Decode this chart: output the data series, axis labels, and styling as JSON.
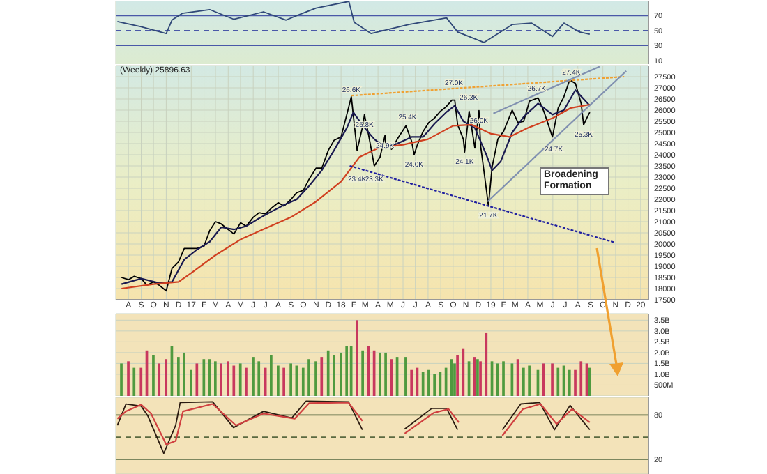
{
  "chart_data": [
    {
      "type": "line",
      "x": [
        "2016-07-05",
        "2016-09-01",
        "2016-11-01",
        "2016-11-15",
        "2016-12-10",
        "2017-02-15",
        "2017-04-15",
        "2017-06-26",
        "2017-08-20",
        "2017-09-15",
        "2017-11-01",
        "2018-01-20",
        "2018-02-02",
        "2018-03-15",
        "2018-06-15",
        "2018-09-15",
        "2018-10-12",
        "2018-12-15",
        "2019-02-22",
        "2019-04-10",
        "2019-05-31",
        "2019-06-28",
        "2019-08-05",
        "2019-08-30"
      ],
      "values": [
        62,
        55,
        46,
        64,
        73,
        78,
        65,
        75,
        64,
        70,
        80,
        89,
        61,
        46,
        58,
        67,
        48,
        34,
        58,
        60,
        42,
        60,
        48,
        45
      ],
      "color": "#304878",
      "xlim": [
        "2016-07-01",
        "2020-01-20"
      ],
      "xticks": [
        {
          "value": "2016-08-01",
          "label": null
        },
        {
          "value": "2016-09-01",
          "label": null
        },
        {
          "value": "2016-10-01",
          "label": null
        },
        {
          "value": "2016-11-01",
          "label": null
        },
        {
          "value": "2016-12-01",
          "label": null
        },
        {
          "value": "2017-01-01",
          "label": null
        },
        {
          "value": "2017-02-01",
          "label": null
        },
        {
          "value": "2017-03-01",
          "label": null
        },
        {
          "value": "2017-04-01",
          "label": null
        },
        {
          "value": "2017-05-01",
          "label": null
        },
        {
          "value": "2017-06-01",
          "label": null
        },
        {
          "value": "2017-07-01",
          "label": null
        },
        {
          "value": "2017-08-01",
          "label": null
        },
        {
          "value": "2017-09-01",
          "label": null
        },
        {
          "value": "2017-10-01",
          "label": null
        },
        {
          "value": "2017-11-01",
          "label": null
        },
        {
          "value": "2017-12-01",
          "label": null
        },
        {
          "value": "2018-01-01",
          "label": null
        },
        {
          "value": "2018-02-01",
          "label": null
        },
        {
          "value": "2018-03-01",
          "label": null
        },
        {
          "value": "2018-04-01",
          "label": null
        },
        {
          "value": "2018-05-01",
          "label": null
        },
        {
          "value": "2018-06-01",
          "label": null
        },
        {
          "value": "2018-07-01",
          "label": null
        },
        {
          "value": "2018-08-01",
          "label": null
        },
        {
          "value": "2018-09-01",
          "label": null
        },
        {
          "value": "2018-10-01",
          "label": null
        },
        {
          "value": "2018-11-01",
          "label": null
        },
        {
          "value": "2018-12-01",
          "label": null
        },
        {
          "value": "2019-01-01",
          "label": null
        },
        {
          "value": "2019-02-01",
          "label": null
        },
        {
          "value": "2019-03-01",
          "label": null
        },
        {
          "value": "2019-04-01",
          "label": null
        },
        {
          "value": "2019-05-01",
          "label": null
        },
        {
          "value": "2019-06-01",
          "label": null
        },
        {
          "value": "2019-07-01",
          "label": null
        },
        {
          "value": "2019-08-01",
          "label": null
        },
        {
          "value": "2019-09-01",
          "label": null
        },
        {
          "value": "2019-10-01",
          "label": null
        },
        {
          "value": "2019-11-01",
          "label": null
        },
        {
          "value": "2019-12-01",
          "label": null
        },
        {
          "value": "2020-01-01",
          "label": null
        }
      ],
      "ylim": [
        5,
        89
      ],
      "yticks": [
        70,
        50,
        30,
        10
      ],
      "grid": "x",
      "tick_labels": "y",
      "ref_lines": [
        {
          "axis": "y",
          "value": 70,
          "color": "#4a58a8",
          "line_style": "solid"
        },
        {
          "axis": "y",
          "value": 50,
          "color": "#4a58a8",
          "line_style": "dashed"
        },
        {
          "axis": "y",
          "value": 30,
          "color": "#4a58a8",
          "line_style": "solid"
        }
      ]
    },
    {
      "type": "line",
      "title": "(Weekly) 25896.63",
      "series": [
        {
          "color": "#000000",
          "x": [
            "2016-07-15",
            "2016-08-01",
            "2016-08-15",
            "2016-09-01",
            "2016-09-15",
            "2016-10-01",
            "2016-10-15",
            "2016-11-01",
            "2016-11-15",
            "2016-12-01",
            "2016-12-15",
            "2017-01-01",
            "2017-01-15",
            "2017-02-01",
            "2017-02-15",
            "2017-03-01",
            "2017-03-15",
            "2017-04-01",
            "2017-04-15",
            "2017-05-01",
            "2017-05-15",
            "2017-06-01",
            "2017-06-15",
            "2017-07-01",
            "2017-07-15",
            "2017-08-01",
            "2017-08-15",
            "2017-09-01",
            "2017-09-15",
            "2017-10-01",
            "2017-10-15",
            "2017-11-01",
            "2017-11-15",
            "2017-12-01",
            "2017-12-15",
            "2018-01-01",
            "2018-01-15",
            "2018-01-26",
            "2018-02-09",
            "2018-02-23",
            "2018-02-27",
            "2018-03-09",
            "2018-03-23",
            "2018-04-06",
            "2018-04-18",
            "2018-04-20",
            "2018-05-04",
            "2018-05-18",
            "2018-06-08",
            "2018-06-22",
            "2018-06-28",
            "2018-07-06",
            "2018-07-20",
            "2018-08-03",
            "2018-08-17",
            "2018-08-31",
            "2018-09-14",
            "2018-09-28",
            "2018-10-05",
            "2018-10-12",
            "2018-10-26",
            "2018-10-29",
            "2018-11-09",
            "2018-11-23",
            "2018-11-30",
            "2018-12-03",
            "2018-12-07",
            "2018-12-21",
            "2018-12-26",
            "2019-01-04",
            "2019-01-18",
            "2019-02-01",
            "2019-02-22",
            "2019-03-08",
            "2019-03-22",
            "2019-04-05",
            "2019-04-26",
            "2019-05-10",
            "2019-05-31",
            "2019-06-14",
            "2019-06-28",
            "2019-07-12",
            "2019-07-26",
            "2019-08-09",
            "2019-08-15",
            "2019-08-23",
            "2019-08-30"
          ],
          "values": [
            18500,
            18400,
            18550,
            18450,
            18150,
            18300,
            18150,
            17900,
            18900,
            19200,
            19800,
            19800,
            19800,
            19900,
            20600,
            21000,
            20900,
            20650,
            20450,
            20950,
            20800,
            21200,
            21400,
            21350,
            21600,
            21850,
            21700,
            22000,
            22300,
            22400,
            22900,
            23400,
            23400,
            24200,
            24650,
            24800,
            25800,
            26600,
            24200,
            25300,
            25800,
            24900,
            23500,
            23900,
            24860,
            24450,
            24250,
            24700,
            25300,
            24600,
            24000,
            24450,
            25050,
            25450,
            25650,
            25950,
            26150,
            26450,
            26450,
            25350,
            24700,
            24120,
            25950,
            24300,
            25500,
            25980,
            24400,
            22450,
            21710,
            23450,
            24700,
            25050,
            26000,
            25450,
            25500,
            26400,
            26550,
            25950,
            24800,
            26100,
            26600,
            27350,
            27200,
            26300,
            25340,
            25650,
            25900
          ]
        },
        {
          "color": "#1a1a50",
          "x": [
            "2016-07-15",
            "2016-09-01",
            "2016-10-15",
            "2016-11-15",
            "2016-12-15",
            "2017-01-15",
            "2017-02-15",
            "2017-03-15",
            "2017-04-15",
            "2017-05-15",
            "2017-06-15",
            "2017-07-15",
            "2017-08-15",
            "2017-09-15",
            "2017-10-15",
            "2017-11-15",
            "2017-12-15",
            "2018-01-15",
            "2018-01-31",
            "2018-02-23",
            "2018-03-23",
            "2018-04-20",
            "2018-05-18",
            "2018-06-22",
            "2018-07-20",
            "2018-08-17",
            "2018-09-14",
            "2018-10-05",
            "2018-10-26",
            "2018-11-23",
            "2018-12-21",
            "2019-01-04",
            "2019-01-25",
            "2019-02-22",
            "2019-03-22",
            "2019-04-26",
            "2019-05-31",
            "2019-06-28",
            "2019-07-26",
            "2019-08-30"
          ],
          "values": [
            18200,
            18450,
            18250,
            18300,
            19300,
            19750,
            20100,
            20750,
            20650,
            20800,
            21150,
            21450,
            21750,
            22000,
            22600,
            23300,
            24200,
            25200,
            25900,
            25300,
            24700,
            24300,
            24500,
            24800,
            24800,
            25400,
            25900,
            26200,
            25500,
            25200,
            24000,
            23300,
            23700,
            25000,
            25700,
            26300,
            25800,
            26000,
            26900,
            26200
          ]
        },
        {
          "color": "#d04020",
          "x": [
            "2016-07-15",
            "2016-10-01",
            "2016-12-01",
            "2017-01-01",
            "2017-03-01",
            "2017-05-01",
            "2017-07-01",
            "2017-09-01",
            "2017-11-01",
            "2018-01-01",
            "2018-02-15",
            "2018-04-01",
            "2018-06-01",
            "2018-08-01",
            "2018-10-01",
            "2018-11-15",
            "2018-12-31",
            "2019-02-15",
            "2019-04-01",
            "2019-06-01",
            "2019-07-15",
            "2019-08-30"
          ],
          "values": [
            18000,
            18200,
            18300,
            18700,
            19500,
            20200,
            20700,
            21200,
            21900,
            22800,
            23900,
            24300,
            24450,
            24700,
            25300,
            25350,
            24950,
            24800,
            25200,
            25650,
            26100,
            26250
          ]
        },
        {
          "color": "#f0a030",
          "line_style": "dotted",
          "x": [
            "2018-01-26",
            "2019-11-22"
          ],
          "values": [
            26650,
            27500
          ]
        },
        {
          "color": "#2020a0",
          "line_style": "dotted",
          "x": [
            "2018-01-22",
            "2019-10-29"
          ],
          "values": [
            23500,
            20070
          ]
        },
        {
          "color": "#8090b0",
          "x": [
            "2018-12-24",
            "2019-11-27"
          ],
          "values": [
            21900,
            27760
          ]
        },
        {
          "color": "#8090b0",
          "x": [
            "2019-01-07",
            "2019-09-23"
          ],
          "values": [
            25850,
            27950
          ]
        }
      ],
      "xlim": [
        "2016-07-01",
        "2020-01-20"
      ],
      "xticks": [
        {
          "value": "2016-08-01",
          "label": "A"
        },
        {
          "value": "2016-09-01",
          "label": "S"
        },
        {
          "value": "2016-10-01",
          "label": "O"
        },
        {
          "value": "2016-11-01",
          "label": "N"
        },
        {
          "value": "2016-12-01",
          "label": "D"
        },
        {
          "value": "2017-01-01",
          "label": "17"
        },
        {
          "value": "2017-02-01",
          "label": "F"
        },
        {
          "value": "2017-03-01",
          "label": "M"
        },
        {
          "value": "2017-04-01",
          "label": "A"
        },
        {
          "value": "2017-05-01",
          "label": "M"
        },
        {
          "value": "2017-06-01",
          "label": "J"
        },
        {
          "value": "2017-07-01",
          "label": "J"
        },
        {
          "value": "2017-08-01",
          "label": "A"
        },
        {
          "value": "2017-09-01",
          "label": "S"
        },
        {
          "value": "2017-10-01",
          "label": "O"
        },
        {
          "value": "2017-11-01",
          "label": "N"
        },
        {
          "value": "2017-12-01",
          "label": "D"
        },
        {
          "value": "2018-01-01",
          "label": "18"
        },
        {
          "value": "2018-02-01",
          "label": "F"
        },
        {
          "value": "2018-03-01",
          "label": "M"
        },
        {
          "value": "2018-04-01",
          "label": "A"
        },
        {
          "value": "2018-05-01",
          "label": "M"
        },
        {
          "value": "2018-06-01",
          "label": "J"
        },
        {
          "value": "2018-07-01",
          "label": "J"
        },
        {
          "value": "2018-08-01",
          "label": "A"
        },
        {
          "value": "2018-09-01",
          "label": "S"
        },
        {
          "value": "2018-10-01",
          "label": "O"
        },
        {
          "value": "2018-11-01",
          "label": "N"
        },
        {
          "value": "2018-12-01",
          "label": "D"
        },
        {
          "value": "2019-01-01",
          "label": "19"
        },
        {
          "value": "2019-02-01",
          "label": "F"
        },
        {
          "value": "2019-03-01",
          "label": "M"
        },
        {
          "value": "2019-04-01",
          "label": "A"
        },
        {
          "value": "2019-05-01",
          "label": "M"
        },
        {
          "value": "2019-06-01",
          "label": "J"
        },
        {
          "value": "2019-07-01",
          "label": "J"
        },
        {
          "value": "2019-08-01",
          "label": "A"
        },
        {
          "value": "2019-09-01",
          "label": "S"
        },
        {
          "value": "2019-10-01",
          "label": "O"
        },
        {
          "value": "2019-11-01",
          "label": "N"
        },
        {
          "value": "2019-12-01",
          "label": "D"
        },
        {
          "value": "2020-01-01",
          "label": "20"
        }
      ],
      "ylim": [
        17500,
        28000
      ],
      "yticks": [
        17500,
        18000,
        18500,
        19000,
        19500,
        20000,
        20500,
        21000,
        21500,
        22000,
        22500,
        23000,
        23500,
        24000,
        24500,
        25000,
        25500,
        26000,
        26500,
        27000,
        27500
      ],
      "grid": true,
      "annotations": [
        "Broadening Formation",
        {
          "text": "26.6K",
          "x": "2018-01-26",
          "y": 26620
        },
        {
          "text": "25.8K",
          "x": "2018-02-27",
          "y": 25800
        },
        {
          "text": "23.4K",
          "x": "2018-02-09",
          "y": 23360
        },
        {
          "text": "23.3K",
          "x": "2018-03-23",
          "y": 23340
        },
        {
          "text": "24.9K",
          "x": "2018-04-18",
          "y": 24860
        },
        {
          "text": "25.4K",
          "x": "2018-06-12",
          "y": 25400
        },
        {
          "text": "24.0K",
          "x": "2018-06-28",
          "y": 24000
        },
        {
          "text": "27.0K",
          "x": "2018-10-03",
          "y": 26950
        },
        {
          "text": "26.3K",
          "x": "2018-11-08",
          "y": 26280
        },
        {
          "text": "26.0K",
          "x": "2018-12-03",
          "y": 25980
        },
        {
          "text": "24.1K",
          "x": "2018-10-29",
          "y": 24120
        },
        {
          "text": "21.7K",
          "x": "2018-12-26",
          "y": 21710
        },
        {
          "text": "26.7K",
          "x": "2019-04-23",
          "y": 26700
        },
        {
          "text": "24.7K",
          "x": "2019-06-03",
          "y": 24680
        },
        {
          "text": "27.4K",
          "x": "2019-07-16",
          "y": 27400
        },
        {
          "text": "25.3K",
          "x": "2019-08-15",
          "y": 25340
        }
      ]
    },
    {
      "type": "bar",
      "x": [
        "2016-07-15",
        "2016-08-01",
        "2016-08-15",
        "2016-09-01",
        "2016-09-15",
        "2016-10-01",
        "2016-10-15",
        "2016-11-01",
        "2016-11-15",
        "2016-12-01",
        "2016-12-15",
        "2017-01-01",
        "2017-01-15",
        "2017-02-01",
        "2017-02-15",
        "2017-03-01",
        "2017-03-15",
        "2017-04-01",
        "2017-04-15",
        "2017-05-01",
        "2017-05-15",
        "2017-06-01",
        "2017-06-15",
        "2017-07-01",
        "2017-07-15",
        "2017-08-01",
        "2017-08-15",
        "2017-09-01",
        "2017-09-15",
        "2017-10-01",
        "2017-10-15",
        "2017-11-01",
        "2017-11-15",
        "2017-12-01",
        "2017-12-15",
        "2018-01-01",
        "2018-01-15",
        "2018-01-26",
        "2018-02-09",
        "2018-02-23",
        "2018-03-09",
        "2018-03-23",
        "2018-04-06",
        "2018-04-20",
        "2018-05-04",
        "2018-05-18",
        "2018-06-08",
        "2018-06-22",
        "2018-07-06",
        "2018-07-20",
        "2018-08-03",
        "2018-08-17",
        "2018-08-31",
        "2018-09-14",
        "2018-09-28",
        "2018-10-05",
        "2018-10-12",
        "2018-10-26",
        "2018-11-09",
        "2018-11-23",
        "2018-11-30",
        "2018-12-07",
        "2018-12-21",
        "2019-01-04",
        "2019-01-18",
        "2019-02-01",
        "2019-02-22",
        "2019-03-08",
        "2019-03-22",
        "2019-04-05",
        "2019-04-26",
        "2019-05-10",
        "2019-05-31",
        "2019-06-14",
        "2019-06-28",
        "2019-07-12",
        "2019-07-26",
        "2019-08-09",
        "2019-08-23",
        "2019-08-30"
      ],
      "values": [
        1500000000.0,
        1600000000.0,
        1300000000.0,
        1300000000.0,
        2100000000.0,
        1900000000.0,
        1500000000.0,
        1700000000.0,
        2300000000.0,
        1800000000.0,
        2000000000.0,
        1200000000.0,
        1500000000.0,
        1700000000.0,
        1700000000.0,
        1600000000.0,
        1500000000.0,
        1600000000.0,
        1400000000.0,
        1500000000.0,
        1300000000.0,
        1800000000.0,
        1600000000.0,
        1300000000.0,
        1900000000.0,
        1400000000.0,
        1300000000.0,
        1500000000.0,
        1400000000.0,
        1300000000.0,
        1700000000.0,
        1600000000.0,
        1800000000.0,
        2100000000.0,
        1900000000.0,
        2000000000.0,
        2300000000.0,
        2300000000.0,
        3500000000.0,
        2100000000.0,
        2300000000.0,
        2100000000.0,
        2000000000.0,
        2000000000.0,
        1700000000.0,
        1800000000.0,
        1800000000.0,
        1200000000.0,
        1300000000.0,
        1100000000.0,
        1200000000.0,
        1000000000.0,
        1100000000.0,
        1300000000.0,
        1700000000.0,
        1500000000.0,
        1900000000.0,
        2200000000.0,
        1600000000.0,
        1800000000.0,
        1700000000.0,
        1600000000.0,
        2900000000.0,
        1600000000.0,
        1500000000.0,
        1600000000.0,
        1500000000.0,
        1700000000.0,
        1300000000.0,
        1400000000.0,
        1200000000.0,
        1500000000.0,
        1500000000.0,
        1300000000.0,
        1400000000.0,
        1200000000.0,
        1200000000.0,
        1600000000.0,
        1500000000.0,
        1300000000.0
      ],
      "colors": [
        "#4f9a3f",
        "#c8385e",
        "#4f9a3f",
        "#c8385e",
        "#c8385e",
        "#4f9a3f",
        "#c8385e",
        "#c8385e",
        "#4f9a3f",
        "#4f9a3f",
        "#4f9a3f",
        "#4f9a3f",
        "#c8385e",
        "#4f9a3f",
        "#4f9a3f",
        "#4f9a3f",
        "#c8385e",
        "#c8385e",
        "#c8385e",
        "#4f9a3f",
        "#c8385e",
        "#4f9a3f",
        "#4f9a3f",
        "#c8385e",
        "#4f9a3f",
        "#4f9a3f",
        "#c8385e",
        "#4f9a3f",
        "#4f9a3f",
        "#4f9a3f",
        "#4f9a3f",
        "#4f9a3f",
        "#c8385e",
        "#4f9a3f",
        "#4f9a3f",
        "#4f9a3f",
        "#4f9a3f",
        "#4f9a3f",
        "#c8385e",
        "#4f9a3f",
        "#c8385e",
        "#c8385e",
        "#4f9a3f",
        "#4f9a3f",
        "#c8385e",
        "#4f9a3f",
        "#4f9a3f",
        "#c8385e",
        "#c8385e",
        "#4f9a3f",
        "#4f9a3f",
        "#4f9a3f",
        "#4f9a3f",
        "#4f9a3f",
        "#4f9a3f",
        "#4f9a3f",
        "#c8385e",
        "#c8385e",
        "#4f9a3f",
        "#c8385e",
        "#4f9a3f",
        "#c8385e",
        "#c8385e",
        "#4f9a3f",
        "#4f9a3f",
        "#4f9a3f",
        "#4f9a3f",
        "#c8385e",
        "#4f9a3f",
        "#4f9a3f",
        "#4f9a3f",
        "#c8385e",
        "#c8385e",
        "#4f9a3f",
        "#4f9a3f",
        "#4f9a3f",
        "#c8385e",
        "#c8385e",
        "#c8385e",
        "#4f9a3f"
      ],
      "xlim": [
        "2016-07-01",
        "2020-01-20"
      ],
      "xticks": [
        {
          "value": "2016-08-01",
          "label": null
        },
        {
          "value": "2016-09-01",
          "label": null
        },
        {
          "value": "2016-10-01",
          "label": null
        },
        {
          "value": "2016-11-01",
          "label": null
        },
        {
          "value": "2016-12-01",
          "label": null
        },
        {
          "value": "2017-01-01",
          "label": null
        },
        {
          "value": "2017-02-01",
          "label": null
        },
        {
          "value": "2017-03-01",
          "label": null
        },
        {
          "value": "2017-04-01",
          "label": null
        },
        {
          "value": "2017-05-01",
          "label": null
        },
        {
          "value": "2017-06-01",
          "label": null
        },
        {
          "value": "2017-07-01",
          "label": null
        },
        {
          "value": "2017-08-01",
          "label": null
        },
        {
          "value": "2017-09-01",
          "label": null
        },
        {
          "value": "2017-10-01",
          "label": null
        },
        {
          "value": "2017-11-01",
          "label": null
        },
        {
          "value": "2017-12-01",
          "label": null
        },
        {
          "value": "2018-01-01",
          "label": null
        },
        {
          "value": "2018-02-01",
          "label": null
        },
        {
          "value": "2018-03-01",
          "label": null
        },
        {
          "value": "2018-04-01",
          "label": null
        },
        {
          "value": "2018-05-01",
          "label": null
        },
        {
          "value": "2018-06-01",
          "label": null
        },
        {
          "value": "2018-07-01",
          "label": null
        },
        {
          "value": "2018-08-01",
          "label": null
        },
        {
          "value": "2018-09-01",
          "label": null
        },
        {
          "value": "2018-10-01",
          "label": null
        },
        {
          "value": "2018-11-01",
          "label": null
        },
        {
          "value": "2018-12-01",
          "label": null
        },
        {
          "value": "2019-01-01",
          "label": null
        },
        {
          "value": "2019-02-01",
          "label": null
        },
        {
          "value": "2019-03-01",
          "label": null
        },
        {
          "value": "2019-04-01",
          "label": null
        },
        {
          "value": "2019-05-01",
          "label": null
        },
        {
          "value": "2019-06-01",
          "label": null
        },
        {
          "value": "2019-07-01",
          "label": null
        },
        {
          "value": "2019-08-01",
          "label": null
        },
        {
          "value": "2019-09-01",
          "label": null
        },
        {
          "value": "2019-10-01",
          "label": null
        },
        {
          "value": "2019-11-01",
          "label": null
        },
        {
          "value": "2019-12-01",
          "label": null
        },
        {
          "value": "2020-01-01",
          "label": null
        }
      ],
      "ylim": [
        0,
        3800000000.0
      ],
      "yticks": [
        {
          "value": 500000000.0,
          "label": "500M"
        },
        {
          "value": 1000000000.0,
          "label": "1.0B"
        },
        {
          "value": 1500000000.0,
          "label": "1.5B"
        },
        {
          "value": 2000000000.0,
          "label": "2.0B"
        },
        {
          "value": 2500000000.0,
          "label": "2.5B"
        },
        {
          "value": 3000000000.0,
          "label": "3.0B"
        },
        {
          "value": 3500000000.0,
          "label": "3.5B"
        }
      ],
      "grid": true,
      "tick_labels": "y"
    },
    {
      "type": "line",
      "series": [
        {
          "color": "#2a1a10",
          "x": [
            "2016-07-05",
            "2016-07-26",
            "2016-09-01",
            "2016-09-17",
            "2016-10-26",
            "2016-11-24",
            "2016-12-05",
            "2017-02-22",
            "2017-04-14",
            "2017-06-26",
            "2017-09-03",
            "2017-10-08",
            "2018-01-19",
            "2018-02-22",
            "2018-04-15",
            "2018-06-05",
            "2018-08-10",
            "2018-09-15",
            "2018-10-12",
            "2018-11-20",
            "2019-01-29",
            "2019-03-15",
            "2019-04-30",
            "2019-06-05",
            "2019-07-13",
            "2019-08-30"
          ],
          "values": [
            66,
            95,
            92,
            79,
            28,
            66,
            97,
            98,
            63,
            85,
            76,
            99,
            98,
            60,
            null,
            61,
            89,
            89,
            60,
            null,
            60,
            95,
            97,
            60,
            93,
            60
          ]
        },
        {
          "color": "#d04040",
          "x": [
            "2016-07-05",
            "2016-07-26",
            "2016-09-01",
            "2016-09-25",
            "2016-11-01",
            "2016-11-24",
            "2016-12-12",
            "2017-02-22",
            "2017-04-20",
            "2017-06-26",
            "2017-09-10",
            "2017-10-15",
            "2018-01-19",
            "2018-02-22",
            "2018-04-15",
            "2018-06-05",
            "2018-08-15",
            "2018-09-20",
            "2018-10-15",
            "2018-11-20",
            "2019-01-29",
            "2019-03-20",
            "2019-05-02",
            "2019-06-10",
            "2019-07-18",
            "2019-08-30"
          ],
          "values": [
            75,
            85,
            94,
            82,
            40,
            45,
            85,
            95,
            66,
            82,
            75,
            96,
            97,
            72,
            null,
            55,
            83,
            88,
            70,
            null,
            52,
            88,
            95,
            68,
            88,
            70
          ]
        }
      ],
      "xlim": [
        "2016-07-01",
        "2020-01-20"
      ],
      "xticks": [
        {
          "value": "2016-08-01",
          "label": null
        },
        {
          "value": "2016-09-01",
          "label": null
        },
        {
          "value": "2016-10-01",
          "label": null
        },
        {
          "value": "2016-11-01",
          "label": null
        },
        {
          "value": "2016-12-01",
          "label": null
        },
        {
          "value": "2017-01-01",
          "label": null
        },
        {
          "value": "2017-02-01",
          "label": null
        },
        {
          "value": "2017-03-01",
          "label": null
        },
        {
          "value": "2017-04-01",
          "label": null
        },
        {
          "value": "2017-05-01",
          "label": null
        },
        {
          "value": "2017-06-01",
          "label": null
        },
        {
          "value": "2017-07-01",
          "label": null
        },
        {
          "value": "2017-08-01",
          "label": null
        },
        {
          "value": "2017-09-01",
          "label": null
        },
        {
          "value": "2017-10-01",
          "label": null
        },
        {
          "value": "2017-11-01",
          "label": null
        },
        {
          "value": "2017-12-01",
          "label": null
        },
        {
          "value": "2018-01-01",
          "label": null
        },
        {
          "value": "2018-02-01",
          "label": null
        },
        {
          "value": "2018-03-01",
          "label": null
        },
        {
          "value": "2018-04-01",
          "label": null
        },
        {
          "value": "2018-05-01",
          "label": null
        },
        {
          "value": "2018-06-01",
          "label": null
        },
        {
          "value": "2018-07-01",
          "label": null
        },
        {
          "value": "2018-08-01",
          "label": null
        },
        {
          "value": "2018-09-01",
          "label": null
        },
        {
          "value": "2018-10-01",
          "label": null
        },
        {
          "value": "2018-11-01",
          "label": null
        },
        {
          "value": "2018-12-01",
          "label": null
        },
        {
          "value": "2019-01-01",
          "label": null
        },
        {
          "value": "2019-02-01",
          "label": null
        },
        {
          "value": "2019-03-01",
          "label": null
        },
        {
          "value": "2019-04-01",
          "label": null
        },
        {
          "value": "2019-05-01",
          "label": null
        },
        {
          "value": "2019-06-01",
          "label": null
        },
        {
          "value": "2019-07-01",
          "label": null
        },
        {
          "value": "2019-08-01",
          "label": null
        },
        {
          "value": "2019-09-01",
          "label": null
        },
        {
          "value": "2019-10-01",
          "label": null
        },
        {
          "value": "2019-11-01",
          "label": null
        },
        {
          "value": "2019-12-01",
          "label": null
        },
        {
          "value": "2020-01-01",
          "label": null
        }
      ],
      "ylim": [
        0,
        104
      ],
      "yticks": [
        80,
        20
      ],
      "grid": true,
      "tick_labels": "y",
      "ref_lines": [
        {
          "axis": "y",
          "value": 80,
          "color": "#5a6a40",
          "line_style": "solid"
        },
        {
          "axis": "y",
          "value": 50,
          "color": "#5a6a40",
          "line_style": "dashed"
        },
        {
          "axis": "y",
          "value": 20,
          "color": "#5a6a40",
          "line_style": "solid"
        }
      ]
    }
  ]
}
